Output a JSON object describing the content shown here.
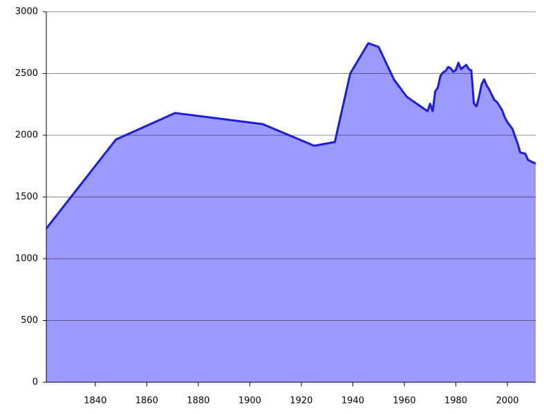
{
  "chart_data": {
    "type": "area",
    "x": [
      1821,
      1848,
      1871,
      1905,
      1925,
      1933,
      1939,
      1946,
      1950,
      1956,
      1961,
      1969,
      1970,
      1971,
      1972,
      1973,
      1974,
      1975,
      1976,
      1977,
      1978,
      1979,
      1980,
      1981,
      1982,
      1983,
      1984,
      1985,
      1986,
      1987,
      1988,
      1989,
      1990,
      1991,
      1992,
      1993,
      1994,
      1995,
      1996,
      1997,
      1998,
      1999,
      2000,
      2001,
      2002,
      2003,
      2004,
      2005,
      2006,
      2007,
      2008,
      2009,
      2010,
      2011
    ],
    "series": [
      {
        "color": "#1a1ae0",
        "fill": "#9a9aff",
        "values": [
          1245,
          1965,
          2180,
          2090,
          1915,
          1945,
          2500,
          2745,
          2715,
          2450,
          2310,
          2195,
          2255,
          2195,
          2357,
          2385,
          2480,
          2508,
          2520,
          2553,
          2542,
          2514,
          2530,
          2587,
          2536,
          2553,
          2570,
          2536,
          2525,
          2257,
          2235,
          2313,
          2413,
          2452,
          2402,
          2369,
          2324,
          2285,
          2268,
          2235,
          2201,
          2145,
          2106,
          2078,
          2050,
          1989,
          1933,
          1860,
          1855,
          1850,
          1800,
          1790,
          1780,
          1770
        ]
      }
    ],
    "xlim": [
      1821,
      2011
    ],
    "xticks": [
      1840,
      1860,
      1880,
      1900,
      1920,
      1940,
      1960,
      1980,
      2000
    ],
    "ylim": [
      0,
      3000
    ],
    "yticks": [
      0,
      500,
      1000,
      1500,
      2000,
      2500,
      3000
    ],
    "grid": true
  }
}
